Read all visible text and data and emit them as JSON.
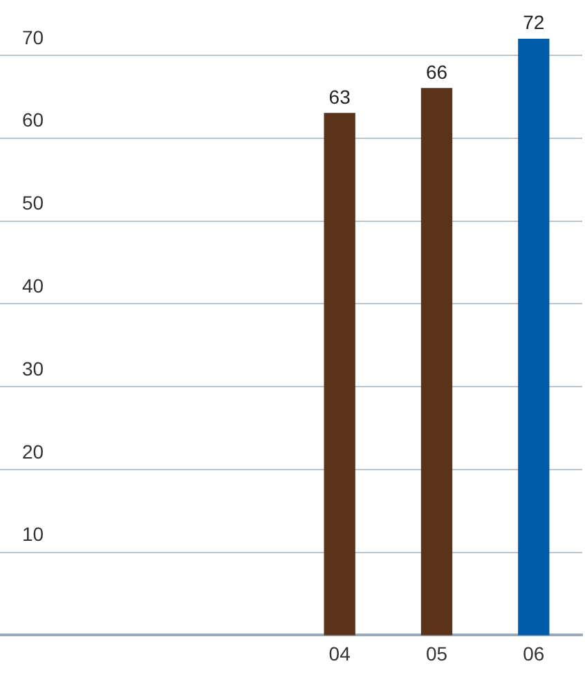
{
  "chart_data": {
    "type": "bar",
    "categories": [
      null,
      null,
      null,
      "04",
      "05",
      "06"
    ],
    "values": [
      null,
      null,
      null,
      63,
      66,
      72
    ],
    "colors": [
      "#5a3319",
      "#5a3319",
      "#5a3319",
      "#5a3319",
      "#5a3319",
      "#005ca9"
    ],
    "ylim": [
      0,
      72
    ],
    "yticks": [
      10,
      20,
      30,
      40,
      50,
      60,
      70
    ],
    "grid": "y",
    "data_labels": true,
    "legend": false
  }
}
